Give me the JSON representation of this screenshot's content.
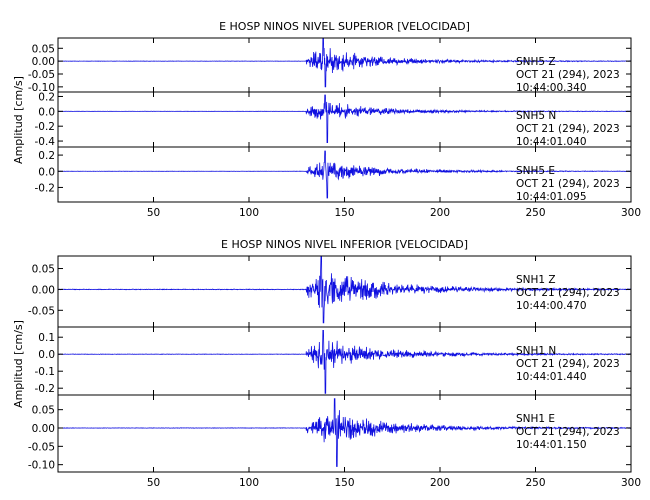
{
  "chart_data": [
    {
      "type": "line",
      "title": "E HOSP NINOS NIVEL SUPERIOR [VELOCIDAD]",
      "ylabel": "Amplitud [cm/s]",
      "xlabel": "",
      "xlim": [
        0,
        300
      ],
      "xticks": [
        50,
        100,
        150,
        200,
        250,
        300
      ],
      "panels": [
        {
          "station": "SNH5",
          "component": "Z",
          "date": "OCT 21 (294), 2023",
          "time": "10:44:00.340",
          "ylim": [
            -0.12,
            0.09
          ],
          "yticks": [
            "0.05",
            "0.00",
            "-0.05",
            "-0.10"
          ],
          "ytick_values": [
            0.05,
            0.0,
            -0.05,
            -0.1
          ],
          "onset": 130,
          "peak_time": 140,
          "peak_pos": 0.09,
          "peak_neg": -0.1,
          "coda_amp": 0.012
        },
        {
          "station": "SNH5",
          "component": "N",
          "date": "OCT 21 (294), 2023",
          "time": "10:44:01.040",
          "ylim": [
            -0.48,
            0.26
          ],
          "yticks": [
            "0.2",
            "0.0",
            "-0.2",
            "-0.4"
          ],
          "ytick_values": [
            0.2,
            0.0,
            -0.2,
            -0.4
          ],
          "onset": 130,
          "peak_time": 141,
          "peak_pos": 0.22,
          "peak_neg": -0.42,
          "coda_amp": 0.03
        },
        {
          "station": "SNH5",
          "component": "E",
          "date": "OCT 21 (294), 2023",
          "time": "10:44:01.095",
          "ylim": [
            -0.38,
            0.3
          ],
          "yticks": [
            "0.2",
            "0.0",
            "-0.2"
          ],
          "ytick_values": [
            0.2,
            0.0,
            -0.2
          ],
          "onset": 130,
          "peak_time": 141,
          "peak_pos": 0.25,
          "peak_neg": -0.33,
          "coda_amp": 0.03
        }
      ]
    },
    {
      "type": "line",
      "title": "E HOSP NINOS NIVEL INFERIOR [VELOCIDAD]",
      "ylabel": "Amplitud [cm/s]",
      "xlabel": "",
      "xlim": [
        0,
        300
      ],
      "xticks": [
        50,
        100,
        150,
        200,
        250,
        300
      ],
      "panels": [
        {
          "station": "SNH1",
          "component": "Z",
          "date": "OCT 21 (294), 2023",
          "time": "10:44:00.470",
          "ylim": [
            -0.09,
            0.08
          ],
          "yticks": [
            "0.05",
            "0.00",
            "-0.05"
          ],
          "ytick_values": [
            0.05,
            0.0,
            -0.05
          ],
          "onset": 130,
          "peak_time": 139,
          "peak_pos": 0.08,
          "peak_neg": -0.08,
          "coda_amp": 0.015
        },
        {
          "station": "SNH1",
          "component": "N",
          "date": "OCT 21 (294), 2023",
          "time": "10:44:01.440",
          "ylim": [
            -0.24,
            0.16
          ],
          "yticks": [
            "0.1",
            "0.0",
            "-0.1",
            "-0.2"
          ],
          "ytick_values": [
            0.1,
            0.0,
            -0.1,
            -0.2
          ],
          "onset": 130,
          "peak_time": 140,
          "peak_pos": 0.14,
          "peak_neg": -0.23,
          "coda_amp": 0.025
        },
        {
          "station": "SNH1",
          "component": "E",
          "date": "OCT 21 (294), 2023",
          "time": "10:44:01.150",
          "ylim": [
            -0.12,
            0.09
          ],
          "yticks": [
            "0.05",
            "0.00",
            "-0.05",
            "-0.10"
          ],
          "ytick_values": [
            0.05,
            0.0,
            -0.05,
            -0.1
          ],
          "onset": 130,
          "peak_time": 146,
          "peak_pos": 0.08,
          "peak_neg": -0.105,
          "coda_amp": 0.012
        }
      ]
    }
  ],
  "colors": {
    "trace": "#1010e0",
    "axes": "#000000"
  }
}
